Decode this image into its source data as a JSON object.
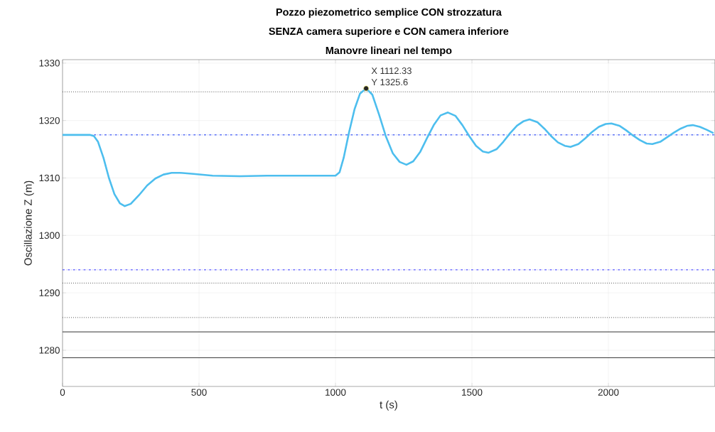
{
  "chart_data": {
    "type": "line",
    "title": "Pozzo piezometrico semplice CON strozzatura",
    "subtitle": "SENZA camera superiore e CON camera inferiore",
    "annotations": [
      "Manovre lineari nel tempo",
      {
        "text": "X 1112.33",
        "x": 1112.33,
        "y": 1325.6
      },
      {
        "text": "Y 1325.6",
        "x": 1112.33,
        "y": 1325.6
      }
    ],
    "xlabel": "t (s)",
    "ylabel": "Oscillazione Z (m)",
    "xlim": [
      0,
      2390
    ],
    "ylim": [
      1273.7,
      1330.6
    ],
    "xticks": [
      0,
      500,
      1000,
      1500,
      2000
    ],
    "yticks": [
      1280,
      1290,
      1300,
      1310,
      1320,
      1330
    ],
    "grid": true,
    "line_style": "solid",
    "marker": "none",
    "series": [
      {
        "color": "#4dbeee",
        "x": [
          0,
          50,
          100,
          115,
          130,
          150,
          170,
          190,
          210,
          228,
          250,
          280,
          310,
          340,
          370,
          400,
          430,
          480,
          550,
          650,
          750,
          850,
          950,
          1000,
          1015,
          1030,
          1050,
          1070,
          1090,
          1112.33,
          1135,
          1160,
          1185,
          1210,
          1235,
          1260,
          1285,
          1310,
          1335,
          1360,
          1385,
          1412,
          1440,
          1465,
          1490,
          1515,
          1540,
          1561,
          1590,
          1615,
          1640,
          1665,
          1690,
          1711,
          1740,
          1765,
          1790,
          1815,
          1840,
          1861,
          1890,
          1915,
          1940,
          1965,
          1990,
          2011,
          2040,
          2065,
          2090,
          2115,
          2140,
          2161,
          2190,
          2215,
          2240,
          2265,
          2290,
          2309,
          2335,
          2360,
          2385
        ],
        "values": [
          1317.5,
          1317.5,
          1317.5,
          1317.3,
          1316.3,
          1313.5,
          1310.0,
          1307.2,
          1305.6,
          1305.1,
          1305.5,
          1307.0,
          1308.7,
          1309.9,
          1310.6,
          1310.9,
          1310.9,
          1310.7,
          1310.4,
          1310.3,
          1310.4,
          1310.4,
          1310.4,
          1310.4,
          1311.0,
          1313.5,
          1318.0,
          1322.0,
          1324.7,
          1325.6,
          1324.5,
          1321.0,
          1317.2,
          1314.3,
          1312.8,
          1312.3,
          1312.9,
          1314.5,
          1316.9,
          1319.2,
          1320.9,
          1321.4,
          1320.8,
          1319.2,
          1317.3,
          1315.6,
          1314.6,
          1314.4,
          1315.0,
          1316.3,
          1317.8,
          1319.1,
          1319.9,
          1320.2,
          1319.7,
          1318.6,
          1317.3,
          1316.2,
          1315.6,
          1315.4,
          1315.9,
          1316.9,
          1318.0,
          1318.9,
          1319.4,
          1319.5,
          1319.1,
          1318.3,
          1317.4,
          1316.6,
          1316.0,
          1315.9,
          1316.3,
          1317.1,
          1317.9,
          1318.6,
          1319.1,
          1319.2,
          1318.9,
          1318.4,
          1317.8
        ]
      }
    ],
    "ref_lines": [
      {
        "axis": "y",
        "value": 1317.5,
        "color": "#0a2cf0",
        "line_style": "dashdot"
      },
      {
        "axis": "y",
        "value": 1325,
        "color": "#555555",
        "line_style": "dotted"
      },
      {
        "axis": "y",
        "value": 1294,
        "color": "#3333ff",
        "line_style": "dashdot"
      },
      {
        "axis": "y",
        "value": 1291.7,
        "color": "#555555",
        "line_style": "dotted"
      },
      {
        "axis": "y",
        "value": 1285.7,
        "color": "#555555",
        "line_style": "dotted"
      },
      {
        "axis": "y",
        "value": 1283.2,
        "color": "#333333",
        "line_style": "solid"
      },
      {
        "axis": "y",
        "value": 1278.7,
        "color": "#333333",
        "line_style": "solid"
      }
    ]
  }
}
